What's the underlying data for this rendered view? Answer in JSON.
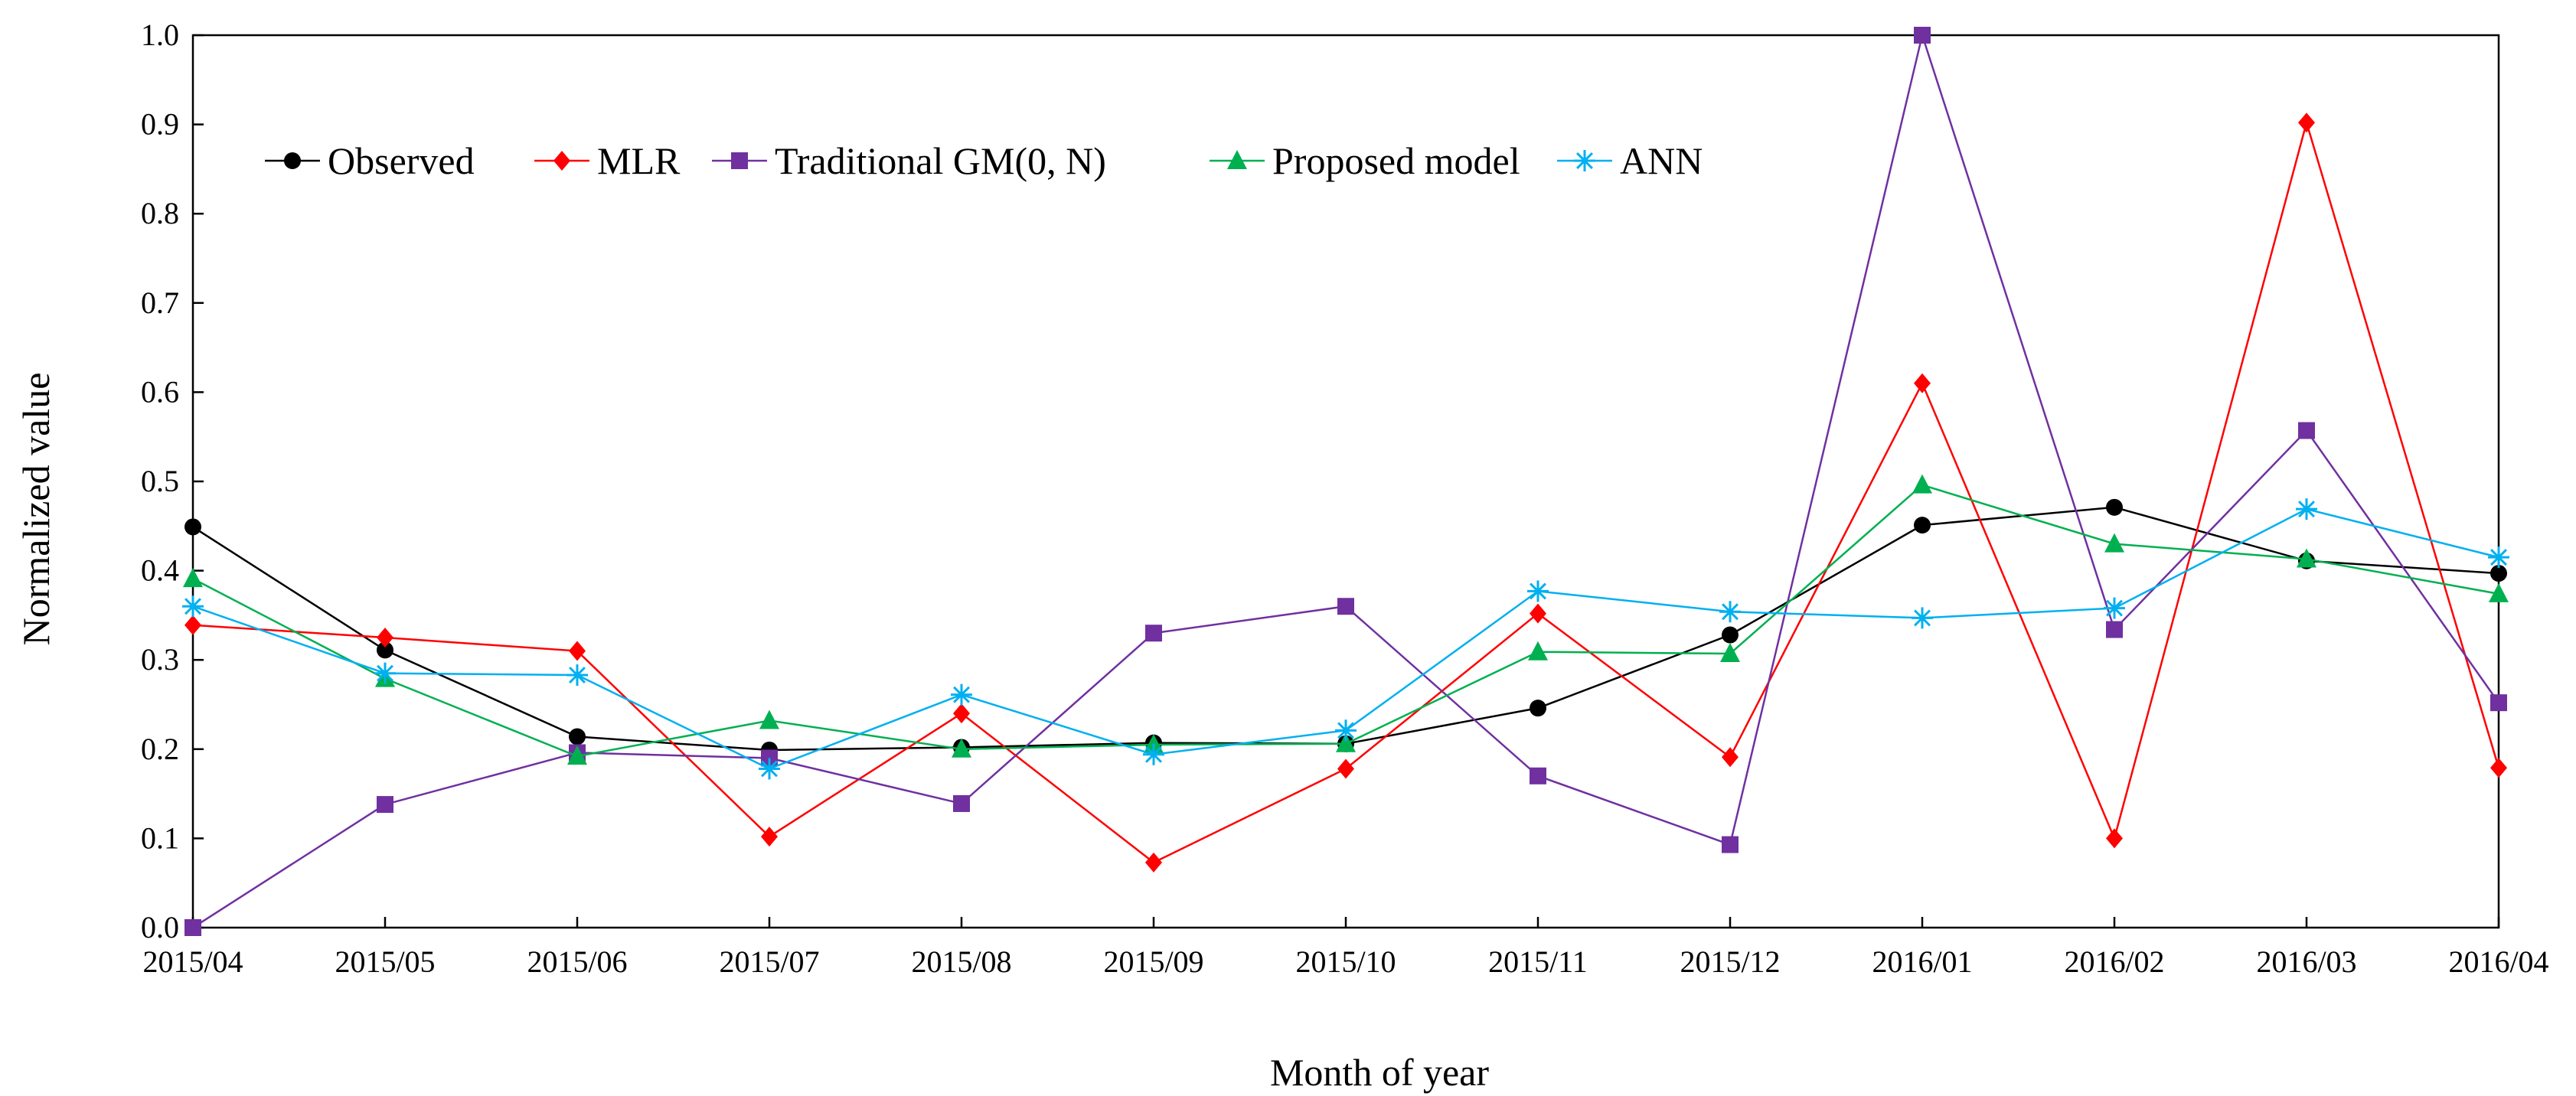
{
  "chart_data": {
    "type": "line",
    "title": "",
    "xlabel": "Month of year",
    "ylabel": "Normalized value",
    "ylim": [
      0,
      1.0
    ],
    "yticks": [
      "0.0",
      "0.1",
      "0.2",
      "0.3",
      "0.4",
      "0.5",
      "0.6",
      "0.7",
      "0.8",
      "0.9",
      "1.0"
    ],
    "categories": [
      "2015/04",
      "2015/05",
      "2015/06",
      "2015/07",
      "2015/08",
      "2015/09",
      "2015/10",
      "2015/11",
      "2015/12",
      "2016/01",
      "2016/02",
      "2016/03",
      "2016/04"
    ],
    "legend_position": "top-left",
    "series": [
      {
        "name": "Observed",
        "color": "#000000",
        "marker": "circle",
        "values": [
          0.449,
          0.311,
          0.214,
          0.199,
          0.202,
          0.207,
          0.206,
          0.246,
          0.328,
          0.451,
          0.471,
          0.411,
          0.397
        ]
      },
      {
        "name": "MLR",
        "color": "#ff0000",
        "marker": "diamond",
        "values": [
          0.339,
          0.325,
          0.31,
          0.102,
          0.24,
          0.073,
          0.178,
          0.352,
          0.191,
          0.61,
          0.1,
          0.902,
          0.179
        ]
      },
      {
        "name": "Traditional GM(0, N)",
        "color": "#7030a0",
        "marker": "square",
        "values": [
          0.0,
          0.138,
          0.196,
          0.19,
          0.139,
          0.33,
          0.36,
          0.17,
          0.093,
          1.0,
          0.334,
          0.557,
          0.252
        ]
      },
      {
        "name": "Proposed model",
        "color": "#00b050",
        "marker": "triangle",
        "values": [
          0.391,
          0.279,
          0.192,
          0.232,
          0.2,
          0.205,
          0.206,
          0.309,
          0.307,
          0.496,
          0.43,
          0.413,
          0.374
        ]
      },
      {
        "name": "ANN",
        "color": "#00b0f0",
        "marker": "asterisk",
        "values": [
          0.36,
          0.285,
          0.283,
          0.178,
          0.261,
          0.194,
          0.221,
          0.377,
          0.354,
          0.347,
          0.358,
          0.469,
          0.415
        ]
      }
    ]
  }
}
